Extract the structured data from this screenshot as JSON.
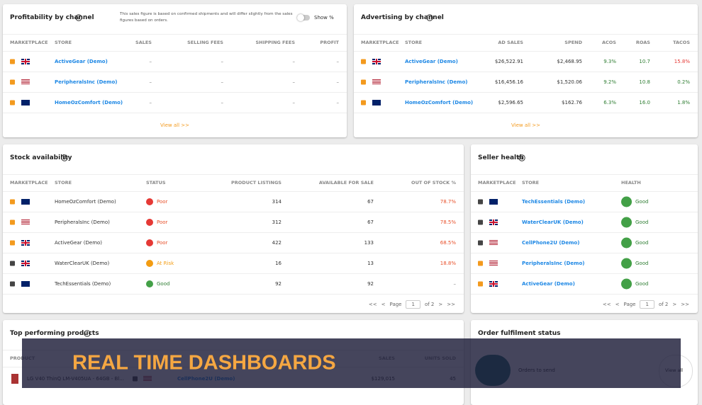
{
  "profitability": {
    "title": "Profitability by channel",
    "note": "This sales figure is based on confirmed shipments and will differ slightly from the sales figures based on orders.",
    "toggle_label": "Show %",
    "columns": [
      "MARKETPLACE",
      "STORE",
      "SALES",
      "SELLING FEES",
      "SHIPPING FEES",
      "PROFIT"
    ],
    "rows": [
      [
        "ActiveGear (Demo)",
        "–",
        "–",
        "–",
        "–"
      ],
      [
        "PeripheralsInc (Demo)",
        "–",
        "–",
        "–",
        "–"
      ],
      [
        "HomeOzComfort (Demo)",
        "–",
        "–",
        "–",
        "–"
      ]
    ],
    "footer": "View all >>"
  },
  "advertising": {
    "title": "Advertising by channel",
    "columns": [
      "MARKETPLACE",
      "STORE",
      "AD SALES",
      "SPEND",
      "ACOS",
      "ROAS",
      "TACOS"
    ],
    "rows": [
      [
        "ActiveGear (Demo)",
        "$26,522.91",
        "$2,468.95",
        "9.3%",
        "10.7",
        "15.8%"
      ],
      [
        "PeripheralsInc (Demo)",
        "$16,456.16",
        "$1,520.06",
        "9.2%",
        "10.8",
        "0.2%"
      ],
      [
        "HomeOzComfort (Demo)",
        "$2,596.65",
        "$162.76",
        "6.3%",
        "16.0",
        "1.8%"
      ]
    ],
    "footer": "View all >>"
  },
  "stock": {
    "title": "Stock availability",
    "columns": [
      "MARKETPLACE",
      "STORE",
      "STATUS",
      "PRODUCT LISTINGS",
      "AVAILABLE FOR SALE",
      "OUT OF STOCK %"
    ],
    "rows": [
      [
        "HomeOzComfort (Demo)",
        "Poor",
        "314",
        "67",
        "78.7%"
      ],
      [
        "PeripheralsInc (Demo)",
        "Poor",
        "312",
        "67",
        "78.5%"
      ],
      [
        "ActiveGear (Demo)",
        "Poor",
        "422",
        "133",
        "68.5%"
      ],
      [
        "WaterClearUK (Demo)",
        "At Risk",
        "16",
        "13",
        "18.8%"
      ],
      [
        "TechEssentials (Demo)",
        "Good",
        "92",
        "92",
        "–"
      ]
    ],
    "pagination": {
      "first": "<<",
      "prev": "<",
      "page_label": "Page",
      "page": "1",
      "of": "of 2",
      "next": ">",
      "last": ">>"
    }
  },
  "seller_health": {
    "title": "Seller health",
    "columns": [
      "MARKETPLACE",
      "STORE",
      "HEALTH"
    ],
    "rows": [
      [
        "TechEssentials (Demo)",
        "Good"
      ],
      [
        "WaterClearUK (Demo)",
        "Good"
      ],
      [
        "CellPhone2U (Demo)",
        "Good"
      ],
      [
        "PeripheralsInc (Demo)",
        "Good"
      ],
      [
        "ActiveGear (Demo)",
        "Good"
      ]
    ],
    "pagination": {
      "first": "<<",
      "prev": "<",
      "page_label": "Page",
      "page": "1",
      "of": "of 2",
      "next": ">",
      "last": ">>"
    }
  },
  "top_products": {
    "title": "Top performing products",
    "columns": [
      "PRODUCT",
      "SALES",
      "UNITS SOLD"
    ],
    "rows": [
      [
        "LG V40 ThinQ LM-V405UA - 64GB - Bl...",
        "CellPhone2U (Demo)",
        "$129,015",
        "45"
      ]
    ]
  },
  "order_fulfilment": {
    "title": "Order fulfilment status",
    "rows": [
      [
        "Orders to send",
        "View all"
      ]
    ]
  },
  "banner": {
    "text": "REAL TIME DASHBOARDS"
  }
}
